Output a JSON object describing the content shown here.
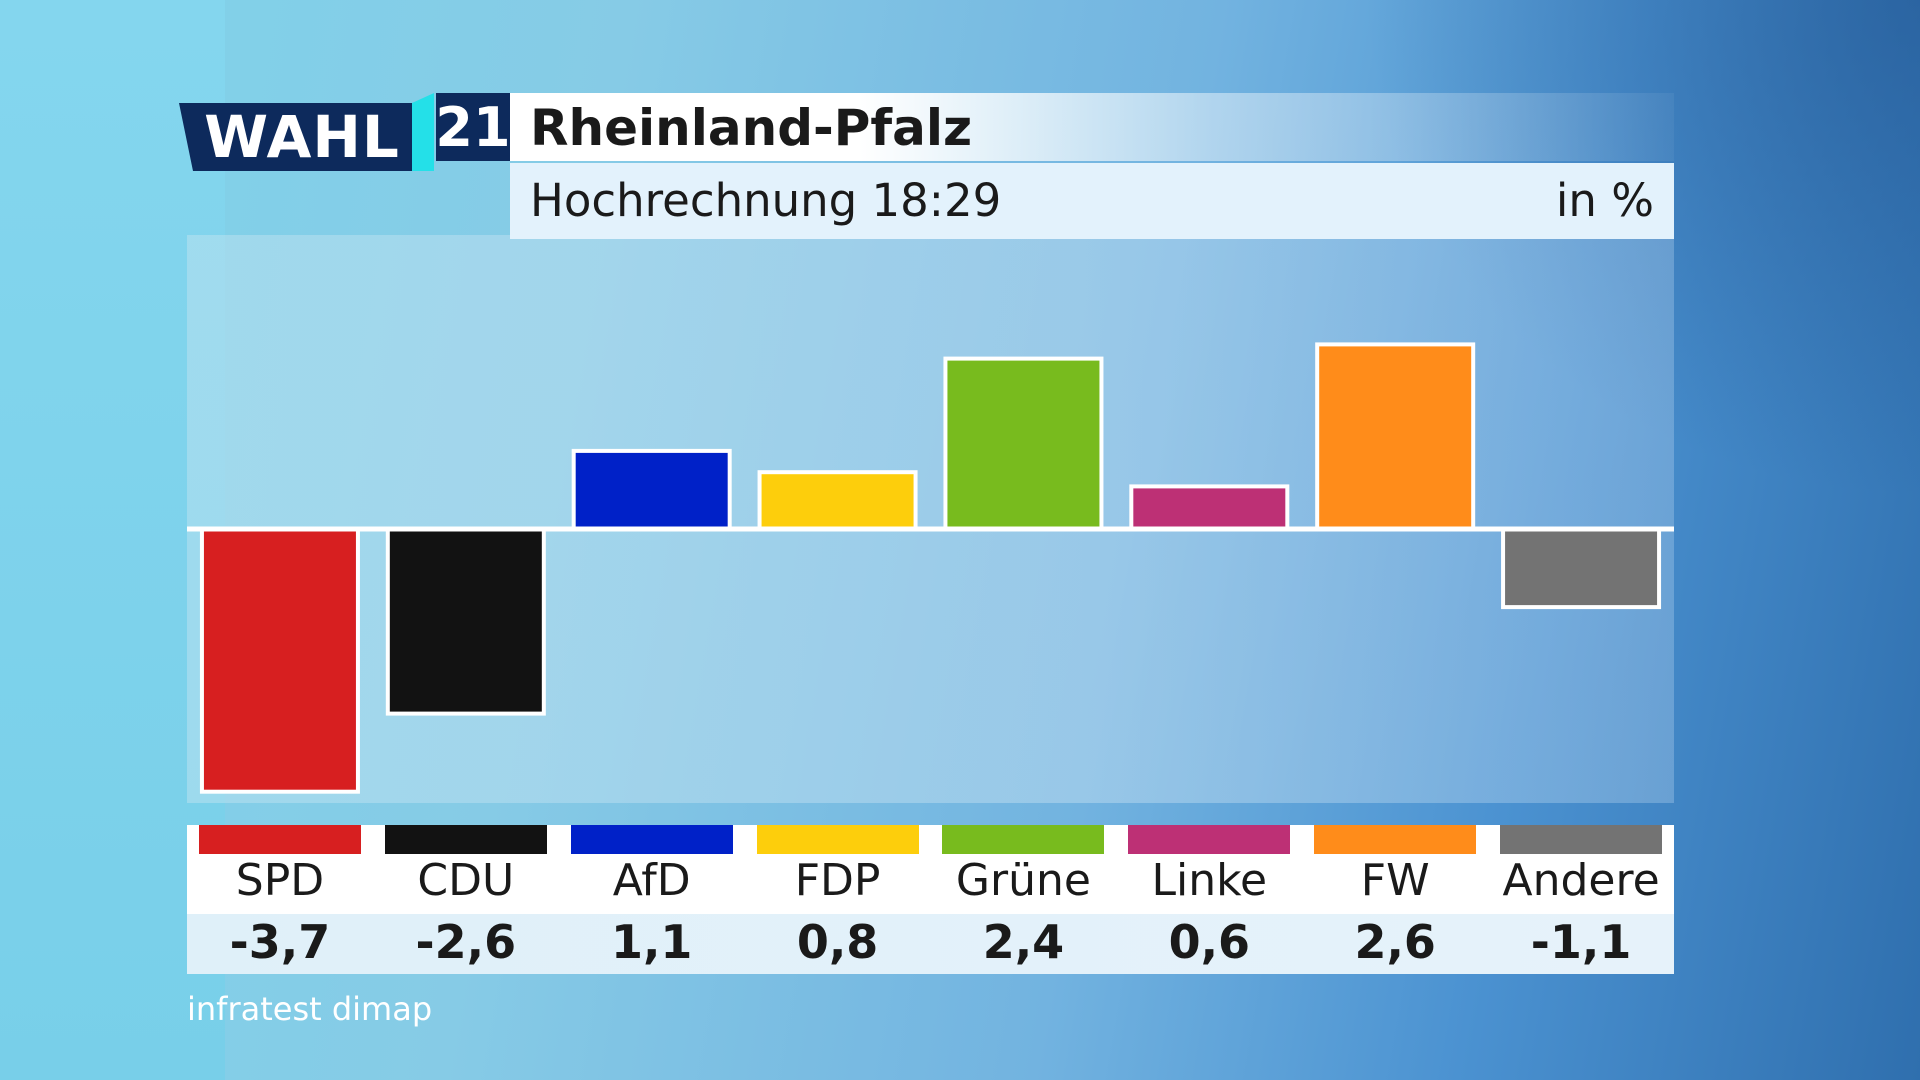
{
  "header": {
    "logo_wahl": "WAHL",
    "logo_number": "21",
    "title": "Rheinland-Pfalz",
    "subtitle": "Hochrechnung 18:29",
    "unit": "in %"
  },
  "source": "infratest dimap",
  "colors": {
    "SPD": "#d71f20",
    "CDU": "#121212",
    "AfD": "#0021c8",
    "FDP": "#fdce0c",
    "Grüne": "#78bb1e",
    "Linke": "#bd3075",
    "FW": "#ff8c1a",
    "Andere": "#737373",
    "logo_navy": "#0d2a5c",
    "logo_accent": "#24e0e8"
  },
  "chart_data": {
    "type": "bar",
    "title": "Rheinland-Pfalz",
    "subtitle": "Hochrechnung 18:29",
    "unit": "in %",
    "categories": [
      "SPD",
      "CDU",
      "AfD",
      "FDP",
      "Grüne",
      "Linke",
      "FW",
      "Andere"
    ],
    "values": [
      -3.7,
      -2.6,
      1.1,
      0.8,
      2.4,
      0.6,
      2.6,
      -1.1
    ],
    "value_labels": [
      "-3,7",
      "-2,6",
      "1,1",
      "0,8",
      "2,4",
      "0,6",
      "2,6",
      "-1,1"
    ],
    "ylim": [
      -3.9,
      4.2
    ],
    "grid": false,
    "legend": "bottom"
  }
}
